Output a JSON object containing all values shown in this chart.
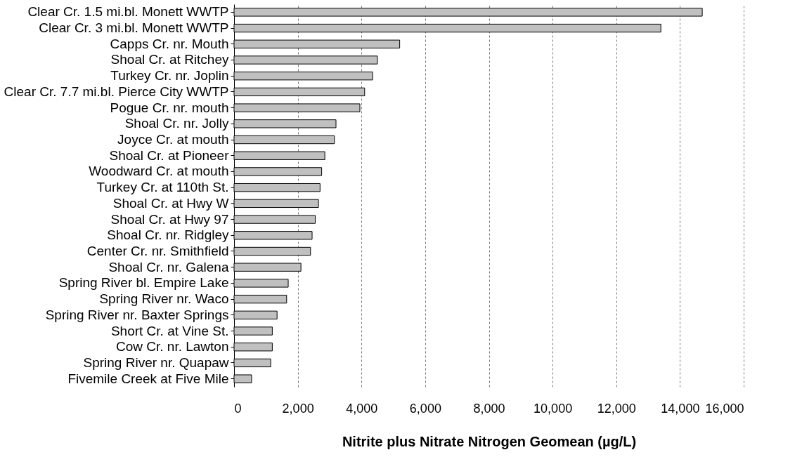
{
  "chart_data": {
    "type": "bar",
    "orientation": "horizontal",
    "xlabel": "Nitrite plus Nitrate Nitrogen Geomean (µg/L)",
    "categories": [
      "Clear Cr. 1.5 mi.bl. Monett WWTP",
      "Clear Cr. 3 mi.bl. Monett WWTP",
      "Capps Cr. nr. Mouth",
      "Shoal Cr. at Ritchey",
      "Turkey Cr. nr. Joplin",
      "Clear Cr. 7.7 mi.bl. Pierce City WWTP",
      "Pogue Cr. nr. mouth",
      "Shoal Cr. nr. Jolly",
      "Joyce Cr. at mouth",
      "Shoal Cr. at Pioneer",
      "Woodward Cr. at mouth",
      "Turkey Cr. at 110th St.",
      "Shoal Cr. at Hwy W",
      "Shoal Cr. at Hwy 97",
      "Shoal Cr. nr. Ridgley",
      "Center Cr. nr. Smithfield",
      "Shoal Cr. nr. Galena",
      "Spring River bl. Empire Lake",
      "Spring River nr. Waco",
      "Spring River nr. Baxter Springs",
      "Short Cr. at Vine St.",
      "Cow Cr. nr. Lawton",
      "Spring River nr. Quapaw",
      "Fivemile Creek at Five Mile"
    ],
    "values": [
      14700,
      13400,
      5200,
      4500,
      4350,
      4100,
      3950,
      3200,
      3150,
      2850,
      2750,
      2700,
      2650,
      2550,
      2450,
      2400,
      2100,
      1700,
      1650,
      1350,
      1200,
      1200,
      1150,
      550
    ],
    "color": "#c0c0c0",
    "xlim": [
      0,
      16000
    ],
    "xticks": [
      {
        "value": 0,
        "label": "0"
      },
      {
        "value": 2000,
        "label": "2,000"
      },
      {
        "value": 4000,
        "label": "4,000"
      },
      {
        "value": 6000,
        "label": "6,000"
      },
      {
        "value": 8000,
        "label": "8,000"
      },
      {
        "value": 10000,
        "label": "10,000"
      },
      {
        "value": 12000,
        "label": "12,000"
      },
      {
        "value": 14000,
        "label": "14,000"
      },
      {
        "value": 16000,
        "label": "16,000"
      }
    ],
    "grid": "x"
  }
}
